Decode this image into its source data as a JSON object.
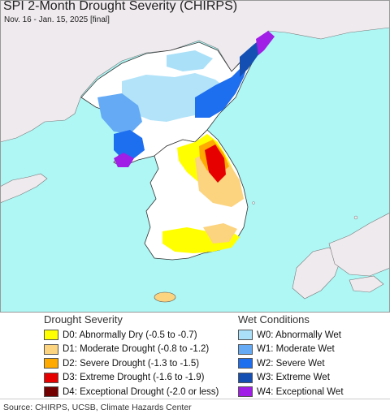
{
  "header": {
    "title": "SPI 2-Month Drought Severity (CHIRPS)",
    "subtitle": "Nov. 16 - Jan. 15, 2025 [final]"
  },
  "colors": {
    "sea": "#aef7f5",
    "land_outside": "#efeaee",
    "land_normal": "#ffffff",
    "border": "#333333"
  },
  "drought_legend": {
    "title": "Drought Severity",
    "items": [
      {
        "label": "D0: Abnormally Dry (-0.5 to -0.7)",
        "color": "#ffff00"
      },
      {
        "label": "D1: Moderate Drought (-0.8 to -1.2)",
        "color": "#fcd37f"
      },
      {
        "label": "D2: Severe Drought (-1.3 to -1.5)",
        "color": "#ffaa00"
      },
      {
        "label": "D3: Extreme Drought (-1.6 to -1.9)",
        "color": "#e60000"
      },
      {
        "label": "D4: Exceptional Drought (-2.0 or less)",
        "color": "#730000"
      }
    ]
  },
  "wet_legend": {
    "title": "Wet Conditions",
    "items": [
      {
        "label": "W0: Abnormally Wet",
        "color": "#aae0f8"
      },
      {
        "label": "W1: Moderate Wet",
        "color": "#64aaf5"
      },
      {
        "label": "W2: Severe Wet",
        "color": "#1e6ef0"
      },
      {
        "label": "W3: Extreme Wet",
        "color": "#1450b4"
      },
      {
        "label": "W4: Exceptional Wet",
        "color": "#a01ee6"
      }
    ]
  },
  "footer": {
    "source": "Source: CHIRPS, UCSB, Climate Hazards Center"
  }
}
